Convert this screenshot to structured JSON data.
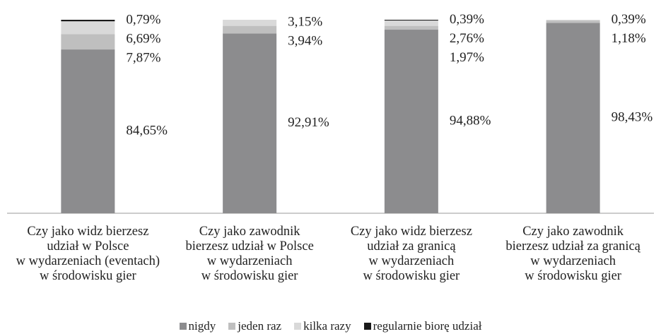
{
  "chart_data": {
    "type": "stacked-bar",
    "categories": [
      "Czy jako widz bierzesz\nudział w Polsce\nw wydarzeniach (eventach)\nw środowisku gier",
      "Czy jako zawodnik\nbierzesz udział w Polsce\nw wydarzeniach\nw środowisku gier",
      "Czy jako widz bierzesz\nudział za granicą\nw wydarzeniach\nw środowisku gier",
      "Czy jako zawodnik\nbierzesz udział za granicą\nw wydarzeniach\nw środowisku gier"
    ],
    "series": [
      {
        "name": "nigdy",
        "color": "#8c8c8e",
        "values": [
          84.65,
          92.91,
          94.88,
          98.43
        ],
        "value_labels": [
          "84,65%",
          "92,91%",
          "94,88%",
          "98,43%"
        ]
      },
      {
        "name": "jeden raz",
        "color": "#bfbfbf",
        "values": [
          7.87,
          3.94,
          1.97,
          1.18
        ],
        "value_labels": [
          "7,87%",
          "3,94%",
          "1,97%",
          "1,18%"
        ]
      },
      {
        "name": "kilka razy",
        "color": "#d9d9d9",
        "values": [
          6.69,
          3.15,
          2.76,
          0.39
        ],
        "value_labels": [
          "6,69%",
          "3,15%",
          "2,76%",
          "0,39%"
        ]
      },
      {
        "name": "regularnie biorę udział",
        "color": "#1a1a1a",
        "values": [
          0.79,
          null,
          0.39,
          null
        ],
        "value_labels": [
          "0,79%",
          null,
          "0,39%",
          null
        ]
      }
    ],
    "legend": "bottom"
  }
}
